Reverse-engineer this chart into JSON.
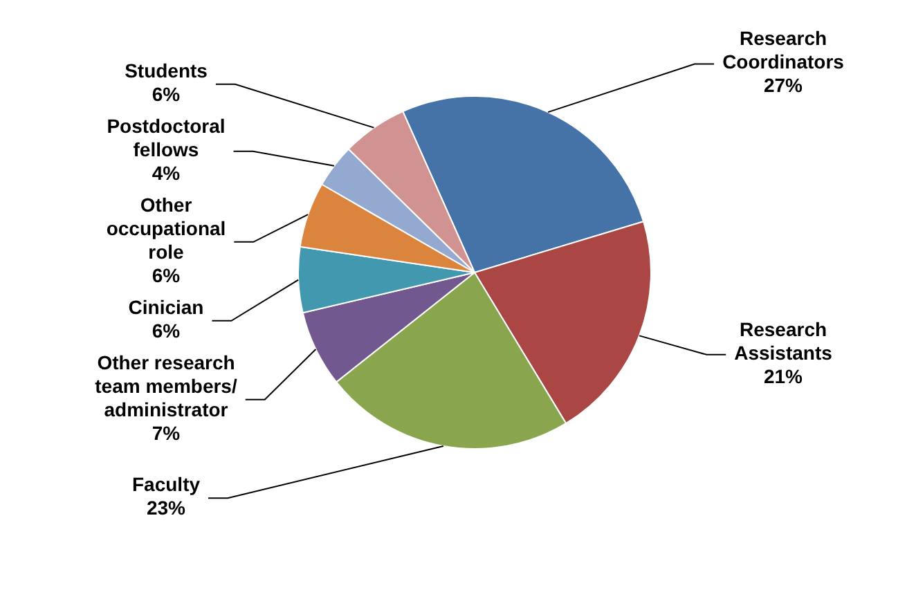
{
  "chart_data": {
    "type": "pie",
    "categories": [
      "Research Coordinators",
      "Research Assistants",
      "Faculty",
      "Other research team members/ administrator",
      "Cinician",
      "Other occupational role",
      "Postdoctoral fellows",
      "Students"
    ],
    "values": [
      27,
      21,
      23,
      7,
      6,
      6,
      4,
      6
    ],
    "value_labels": [
      "27%",
      "21%",
      "23%",
      "7%",
      "6%",
      "6%",
      "4%",
      "6%"
    ],
    "colors": [
      "#4572a7",
      "#aa4643",
      "#89a54e",
      "#71588f",
      "#4198af",
      "#db843d",
      "#93a9cf",
      "#d19392"
    ],
    "legend": false
  }
}
